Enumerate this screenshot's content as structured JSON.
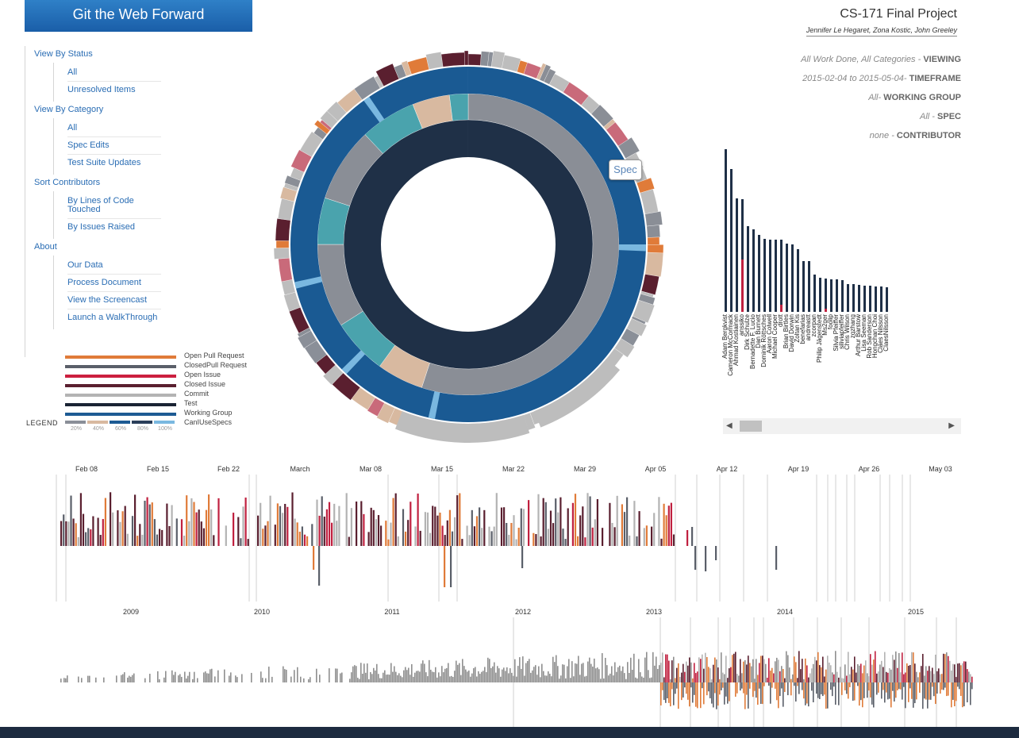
{
  "app": {
    "brand": "Git the Web Forward"
  },
  "header": {
    "title": "CS-171 Final Project",
    "authors": "Jennifer Le Hegaret, Zona Kostic, John Greeley"
  },
  "sidebar": {
    "sections": [
      {
        "label": "View By Status",
        "items": [
          "All",
          "Unresolved Items"
        ]
      },
      {
        "label": "View By Category",
        "items": [
          "All",
          "Spec Edits",
          "Test Suite Updates"
        ]
      },
      {
        "label": "Sort Contributors",
        "items": [
          "By Lines of Code Touched",
          "By Issues Raised"
        ]
      },
      {
        "label": "About",
        "items": [
          "Our Data",
          "Process Document",
          "View the Screencast",
          "Launch a WalkThrough"
        ]
      }
    ]
  },
  "legend": {
    "title": "LEGEND",
    "items": [
      {
        "label": "Open Pull Request",
        "color": "#e07b39"
      },
      {
        "label": "ClosedPull Request",
        "color": "#5a5f69"
      },
      {
        "label": "Open Issue",
        "color": "#cc1f3f"
      },
      {
        "label": "Closed Issue",
        "color": "#5a1f2f"
      },
      {
        "label": "Commit",
        "color": "#b3b3b3"
      },
      {
        "label": "Test",
        "color": "#1a2333"
      },
      {
        "label": "Working Group",
        "color": "#1d5b93"
      },
      {
        "label": "CanIUseSpecs",
        "color": "#3ba0c0"
      }
    ],
    "scale_colors": [
      "#8a8f98",
      "#d8b9a0",
      "#1d5b93",
      "#2a3e5a",
      "#7ab8e0"
    ],
    "scale_ticks": [
      "20%",
      "40%",
      "60%",
      "80%",
      "100%"
    ]
  },
  "filters": {
    "viewing": {
      "value": "All Work Done, All Categories - ",
      "key": "VIEWING"
    },
    "timeframe": {
      "value": "2015-02-04 to 2015-05-04- ",
      "key": "TIMEFRAME"
    },
    "working_group": {
      "value": "All- ",
      "key": "WORKING GROUP"
    },
    "spec": {
      "value": "All - ",
      "key": "SPEC"
    },
    "contributor": {
      "value": "none - ",
      "key": "CONTRIBUTOR"
    }
  },
  "sunburst": {
    "tooltip": "Spec"
  },
  "colors": {
    "navy": "#1f3047",
    "blue": "#1a5a93",
    "teal": "#4aa3ad",
    "gray": "#8a8e96",
    "lightgray": "#bdbdbd",
    "red": "#c0203f",
    "orange": "#e07b39",
    "maroon": "#5a1f2f"
  },
  "chart_data": [
    {
      "type": "bar",
      "categories": [
        "Adam Bergkvist",
        "Cameron McCormack",
        "Ahmad Kostiainen",
        "anssiko",
        "Dirk Schulze",
        "Bernadette F. Lucio",
        "Dan Burnett",
        "Dominik Röttsches",
        "Aaron Colwell",
        "Michael Cooper",
        "drott",
        "Brian Birtles",
        "David Dorwin",
        "Zoltan Kis",
        "benefarias",
        "andreastt",
        "zcorpan",
        "Philip Jägenstedt",
        "Ms2ger",
        "foolip",
        "Silvia Pfeiffer",
        "siliviapfeiffer",
        "Chris Wilson",
        "zqzhang",
        "Arthur Barstow",
        "Lisa Seeman",
        "Rob Sanderson",
        "Hongchan Choi",
        "Claes Nilsson",
        "ClaesNilsson"
      ],
      "values": [
        205,
        180,
        143,
        142,
        108,
        104,
        97,
        92,
        91,
        91,
        91,
        86,
        85,
        79,
        64,
        64,
        47,
        43,
        42,
        41,
        41,
        40,
        35,
        35,
        34,
        33,
        33,
        32,
        32,
        31
      ],
      "highlights": [
        0,
        0,
        0,
        66,
        0,
        0,
        0,
        0,
        0,
        0,
        9,
        0,
        0,
        0,
        0,
        0,
        0,
        0,
        4,
        0,
        0,
        0,
        0,
        0,
        0,
        0,
        0,
        0,
        0,
        0
      ]
    },
    {
      "type": "bar",
      "x_ticks": [
        "Feb 08",
        "Feb 15",
        "Feb 22",
        "March",
        "Mar 08",
        "Mar 15",
        "Mar 22",
        "Mar 29",
        "Apr 05",
        "Apr 12",
        "Apr 19",
        "Apr 26",
        "May 03"
      ]
    },
    {
      "type": "bar",
      "x_ticks": [
        "2009",
        "2010",
        "2011",
        "2012",
        "2013",
        "2014",
        "2015"
      ]
    }
  ]
}
